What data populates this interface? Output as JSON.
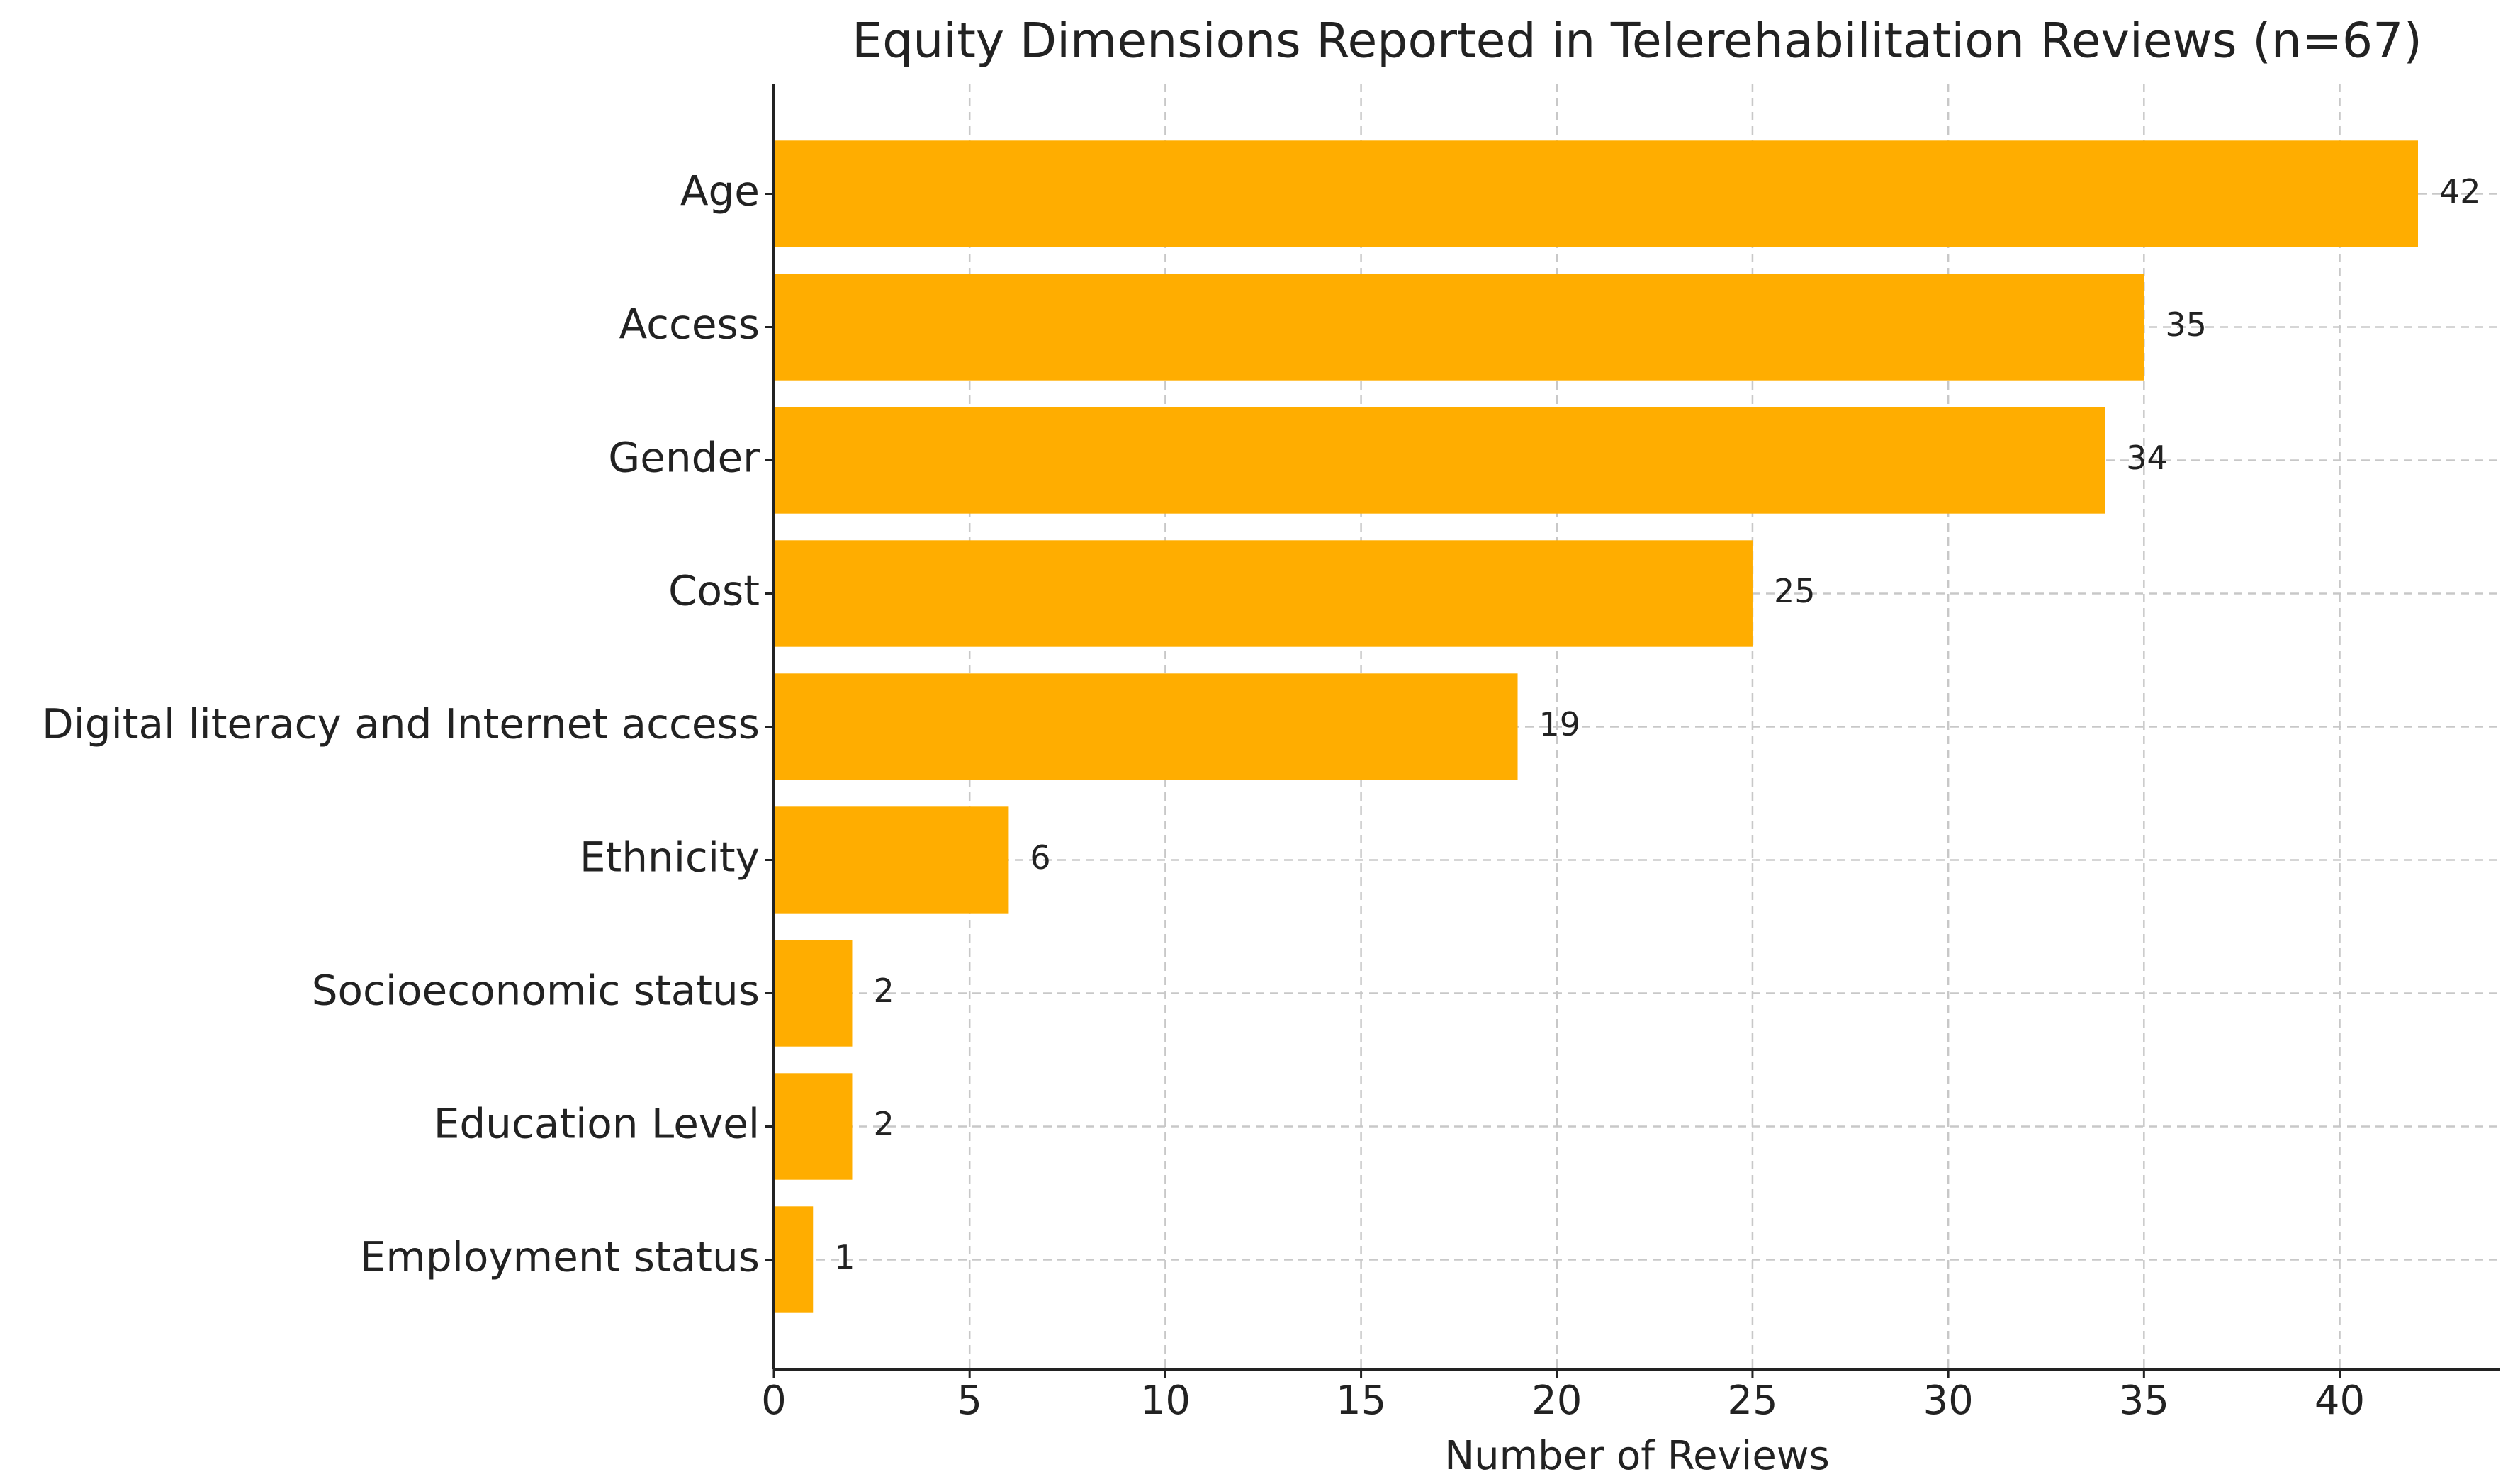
{
  "chart_data": {
    "type": "barh",
    "title": "Equity Dimensions Reported in Telerehabilitation Reviews (n=67)",
    "categories": [
      "Age",
      "Access",
      "Gender",
      "Cost",
      "Digital literacy and Internet access",
      "Ethnicity",
      "Socioeconomic status",
      "Education Level",
      "Employment status"
    ],
    "values": [
      42,
      35,
      34,
      25,
      19,
      6,
      2,
      2,
      1
    ],
    "color": "#ffad00",
    "xlabel": "Number of Reviews",
    "xlim": [
      0,
      44.1
    ],
    "xticks": [
      0,
      5,
      10,
      15,
      20,
      25,
      30,
      35,
      40
    ],
    "grid": true
  }
}
